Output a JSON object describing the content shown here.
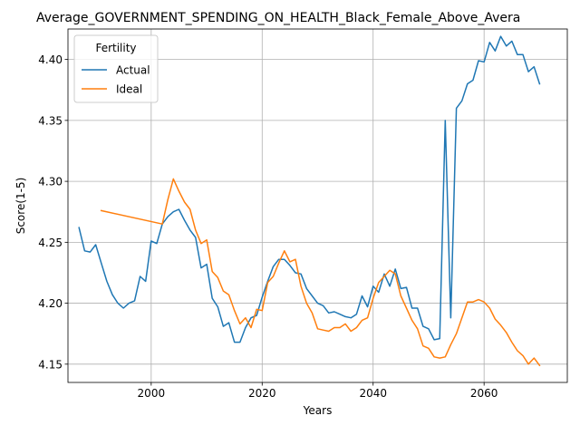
{
  "chart_data": {
    "type": "line",
    "title": "Average_GOVERNMENT_SPENDING_ON_HEALTH_Black_Female_Above_Avera",
    "xlabel": "Years",
    "ylabel": "Score(1-5)",
    "xlim": [
      1985,
      2075
    ],
    "ylim": [
      4.135,
      4.425
    ],
    "xticks": [
      2000,
      2020,
      2040,
      2060
    ],
    "yticks": [
      4.15,
      4.2,
      4.25,
      4.3,
      4.35,
      4.4
    ],
    "grid": true,
    "legend": {
      "title": "Fertility",
      "placement": "upper-left"
    },
    "series": [
      {
        "name": "Actual",
        "color": "#1f77b4",
        "x": [
          1987,
          1988,
          1989,
          1990,
          1991,
          1992,
          1993,
          1994,
          1995,
          1996,
          1997,
          1998,
          1999,
          2000,
          2001,
          2002,
          2003,
          2004,
          2005,
          2006,
          2007,
          2008,
          2009,
          2010,
          2011,
          2012,
          2013,
          2014,
          2015,
          2016,
          2017,
          2018,
          2019,
          2020,
          2021,
          2022,
          2023,
          2024,
          2025,
          2026,
          2027,
          2028,
          2029,
          2030,
          2031,
          2032,
          2033,
          2034,
          2035,
          2036,
          2037,
          2038,
          2039,
          2040,
          2041,
          2042,
          2043,
          2044,
          2045,
          2046,
          2047,
          2048,
          2049,
          2050,
          2051,
          2052,
          2053,
          2054,
          2055,
          2056,
          2057,
          2058,
          2059,
          2060,
          2061,
          2062,
          2063,
          2064,
          2065,
          2066,
          2067,
          2068,
          2069,
          2070
        ],
        "values": [
          4.262,
          4.243,
          4.242,
          4.248,
          4.233,
          4.218,
          4.207,
          4.2,
          4.196,
          4.2,
          4.202,
          4.222,
          4.218,
          4.251,
          4.249,
          4.265,
          4.271,
          4.275,
          4.277,
          4.268,
          4.26,
          4.254,
          4.229,
          4.232,
          4.204,
          4.197,
          4.181,
          4.184,
          4.168,
          4.168,
          4.18,
          4.188,
          4.19,
          4.205,
          4.218,
          4.23,
          4.236,
          4.236,
          4.231,
          4.225,
          4.224,
          4.212,
          4.206,
          4.2,
          4.198,
          4.192,
          4.193,
          4.191,
          4.189,
          4.188,
          4.191,
          4.206,
          4.197,
          4.214,
          4.209,
          4.224,
          4.214,
          4.228,
          4.212,
          4.213,
          4.196,
          4.196,
          4.181,
          4.179,
          4.17,
          4.171,
          4.35,
          4.188,
          4.36,
          4.366,
          4.38,
          4.383,
          4.399,
          4.398,
          4.414,
          4.407,
          4.419,
          4.411,
          4.415,
          4.404,
          4.404,
          4.39,
          4.394,
          4.38
        ]
      },
      {
        "name": "Ideal",
        "color": "#ff7f0e",
        "x": [
          1991,
          2002,
          2003,
          2004,
          2005,
          2006,
          2007,
          2008,
          2009,
          2010,
          2011,
          2012,
          2013,
          2014,
          2015,
          2016,
          2017,
          2018,
          2019,
          2020,
          2021,
          2022,
          2023,
          2024,
          2025,
          2026,
          2027,
          2028,
          2029,
          2030,
          2031,
          2032,
          2033,
          2034,
          2035,
          2036,
          2037,
          2038,
          2039,
          2040,
          2041,
          2042,
          2043,
          2044,
          2045,
          2046,
          2047,
          2048,
          2049,
          2050,
          2051,
          2052,
          2053,
          2054,
          2055,
          2056,
          2057,
          2058,
          2059,
          2060,
          2061,
          2062,
          2063,
          2064,
          2065,
          2066,
          2067,
          2068,
          2069,
          2070
        ],
        "values": [
          4.276,
          4.265,
          4.285,
          4.302,
          4.292,
          4.283,
          4.277,
          4.26,
          4.249,
          4.252,
          4.226,
          4.221,
          4.21,
          4.207,
          4.194,
          4.183,
          4.188,
          4.18,
          4.195,
          4.194,
          4.217,
          4.222,
          4.233,
          4.243,
          4.234,
          4.236,
          4.214,
          4.2,
          4.192,
          4.179,
          4.178,
          4.177,
          4.18,
          4.18,
          4.183,
          4.177,
          4.18,
          4.186,
          4.188,
          4.204,
          4.217,
          4.222,
          4.227,
          4.224,
          4.206,
          4.196,
          4.186,
          4.179,
          4.165,
          4.163,
          4.156,
          4.155,
          4.156,
          4.166,
          4.175,
          4.188,
          4.201,
          4.201,
          4.203,
          4.201,
          4.196,
          4.187,
          4.182,
          4.176,
          4.168,
          4.161,
          4.157,
          4.15,
          4.155,
          4.149
        ]
      }
    ]
  }
}
